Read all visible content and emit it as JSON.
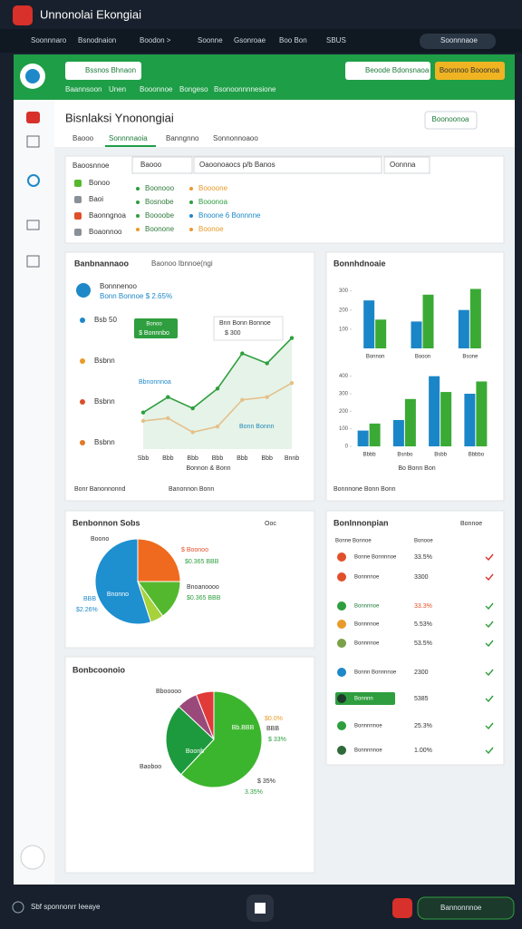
{
  "titlebar": {
    "title": "Unnonolai Ekongiai"
  },
  "nav": {
    "tabs": [
      "Soonnnaro",
      "Bsnodnaion",
      "Boodon >",
      "Soonne",
      "Gsonroae",
      "Boo Bon",
      "SBUS"
    ],
    "pill": "Soonnnaoe"
  },
  "header": {
    "button_left": "Bssnos Bhnaon",
    "button_right": "Beoode Bdonsnaoa",
    "button_yellow": "Boonnoo Booonoa",
    "links": [
      "Baannsoon",
      "Unen",
      "Booonnoe",
      "Bongeso",
      "Bsonoonnnnesione"
    ]
  },
  "page": {
    "title": "Bisnlaksi Ynonongiai",
    "button": "Boonoonoa",
    "tabs": [
      "Baooo",
      "Sonnnnaoia",
      "Banngnno",
      "Sonnonnoaoo"
    ]
  },
  "filters": {
    "label": "Baoosnnoe",
    "select": "Baooo",
    "search": "Oaoonoaocs p/b Banos",
    "field": "Oonnna",
    "options": [
      "Bonoo",
      "Baoi",
      "Baonngnoa",
      "Boaonnoo"
    ],
    "legend": [
      [
        "Boonooo",
        "Boooone"
      ],
      [
        "Bosnobe",
        "Booonoa"
      ],
      [
        "Boooobe",
        "Bnoone 6 Bonnnne"
      ],
      [
        "Boonone",
        "Boonoe"
      ]
    ]
  },
  "line_panel": {
    "title": "Banbnannaoo",
    "search": "Baonoo Ibnnoe(ngi",
    "stat_title": "Bonnnenoo",
    "stat_sub": "Bonn Bonnoe $ 2.65%",
    "side_labels": [
      "Bsb 50",
      "Bsbnn",
      "Bsbnn",
      "Bsbnn"
    ],
    "callouts": [
      "Bonoo",
      "$ Bonnnbo",
      "Bnn Bonn Bonnoe",
      "$ 300",
      "Bbnonnnoa",
      "Bonn Bonnn"
    ],
    "footer_left": "Bonr Banonnonnd",
    "footer_right": "Banonnon Bonn",
    "chart": {
      "type": "line",
      "categories": [
        "Sbb",
        "Bbb",
        "Bbb",
        "Bbb",
        "Bbb",
        "Bbb",
        "Bnnb"
      ],
      "xlabel": "Bonnon & Bonn",
      "ylim": [
        0,
        100
      ],
      "series": [
        {
          "color": "#2e9e3e",
          "area": true,
          "values": [
            26,
            37,
            29,
            43,
            68,
            61,
            79
          ]
        },
        {
          "color": "#e4c08a",
          "values": [
            20,
            22,
            12,
            16,
            35,
            37,
            47
          ]
        }
      ]
    }
  },
  "bar_panel": {
    "title": "Bonnhdnoaie",
    "footer": "Bonnnone Bonn Bonn",
    "charts": [
      {
        "type": "bar",
        "categories": [
          "Bonnon",
          "Booon",
          "Bsone"
        ],
        "ylim": [
          0,
          350
        ],
        "yticks": [
          100,
          200,
          300
        ],
        "series": [
          {
            "color": "#1a86c8",
            "values": [
              250,
              140,
              200
            ]
          },
          {
            "color": "#3aaa35",
            "values": [
              150,
              280,
              310
            ]
          }
        ]
      },
      {
        "type": "bar",
        "categories": [
          "Bbbb",
          "Bsnbo",
          "Bsbb",
          "Bbbbo"
        ],
        "xlabel": "Bo Bonn Bon",
        "ylim": [
          0,
          450
        ],
        "yticks": [
          0,
          100,
          200,
          300,
          400
        ],
        "series": [
          {
            "color": "#1a86c8",
            "values": [
              90,
              150,
              400,
              300
            ]
          },
          {
            "color": "#3aaa35",
            "values": [
              130,
              270,
              310,
              370
            ]
          }
        ]
      }
    ]
  },
  "pie_panel_1": {
    "title": "Benbonnon Sobs",
    "menu": "Ooc",
    "slice_label": "Bnonno",
    "labels": [
      "Boono",
      "$ Boonoo",
      "$0.365 BBB",
      "Bnoanoooo",
      "$0.365 BBB",
      "BBB",
      "$2.26%"
    ],
    "chart": {
      "type": "pie",
      "values": [
        55,
        25,
        15,
        5
      ],
      "colors": [
        "#1e8fcf",
        "#ef6a1e",
        "#54b82e",
        "#a6d23c"
      ]
    }
  },
  "list_panel": {
    "title": "Bonlnnonpian",
    "menu": "Bonnoe",
    "header": [
      "Bonne Bonnoe",
      "Bonooe"
    ],
    "rows": [
      [
        "Bonne Bonnnnoe",
        "33.5%"
      ],
      [
        "Bonnnnoe",
        "3300"
      ],
      [
        "Bonnnnoe",
        "33.3%"
      ],
      [
        "Bonnnnoe",
        "5.53%"
      ],
      [
        "Bonnnnoe",
        "53.5%"
      ],
      [
        "Bonnn Bonnnnoe",
        "2300"
      ],
      [
        "Bonnnn",
        "5385"
      ],
      [
        "Bonnnnnoe",
        "25.3%"
      ],
      [
        "Bonnnnnoe",
        "1.00%"
      ]
    ]
  },
  "pie_panel_2": {
    "title": "Bonbcoonoio",
    "slice_labels": [
      "Bb.BBB",
      "Boonb"
    ],
    "labels": [
      "Bbooooo",
      "$0.0%",
      "BBB",
      "$ 33%",
      "Baoboo",
      "$ 35%",
      "3.35%"
    ],
    "chart": {
      "type": "pie",
      "values": [
        62,
        25,
        7,
        6
      ],
      "colors": [
        "#3cb52e",
        "#1e9a3e",
        "#9a4a7a",
        "#e03a3a"
      ]
    }
  },
  "footer": {
    "status": "Sbf sponnonrr Ieeaye",
    "button": "Bannonnnoe"
  }
}
